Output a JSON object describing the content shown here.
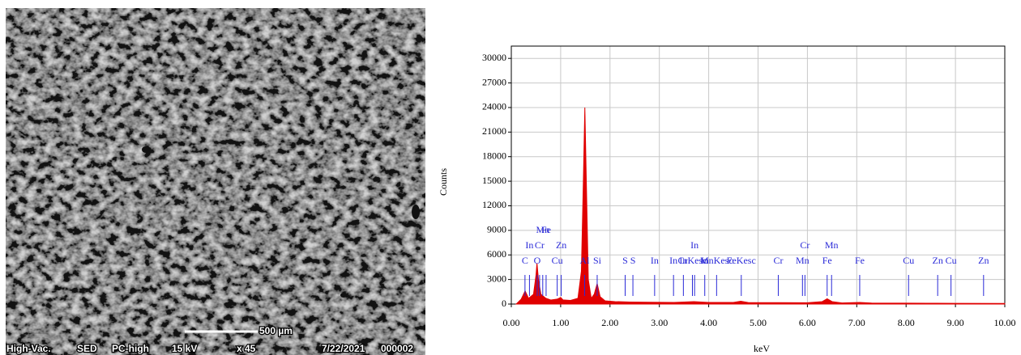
{
  "sem_image": {
    "scale_bar": "500 µm",
    "info_bar": [
      "High-Vac.",
      "SED",
      "PC-high",
      "15 kV",
      "x 45",
      "7/22/2021",
      "000002"
    ]
  },
  "chart_data": {
    "type": "area",
    "x_label": "keV",
    "y_label": "Counts",
    "xlim": [
      0,
      10
    ],
    "ylim": [
      0,
      31500
    ],
    "xticks": [
      {
        "value": 0,
        "label": "0.00"
      },
      {
        "value": 1,
        "label": "1.00"
      },
      {
        "value": 2,
        "label": "2.00"
      },
      {
        "value": 3,
        "label": "3.00"
      },
      {
        "value": 4,
        "label": "4.00"
      },
      {
        "value": 5,
        "label": "5.00"
      },
      {
        "value": 6,
        "label": "6.00"
      },
      {
        "value": 7,
        "label": "7.00"
      },
      {
        "value": 8,
        "label": "8.00"
      },
      {
        "value": 9,
        "label": "9.00"
      },
      {
        "value": 10,
        "label": "10.00"
      }
    ],
    "yticks": [
      0,
      3000,
      6000,
      9000,
      12000,
      15000,
      18000,
      21000,
      24000,
      27000,
      30000
    ],
    "grid": true,
    "x": [
      0.1,
      0.2,
      0.28,
      0.35,
      0.45,
      0.5,
      0.52,
      0.55,
      0.6,
      0.7,
      0.8,
      0.93,
      1.0,
      1.05,
      1.2,
      1.35,
      1.42,
      1.46,
      1.49,
      1.52,
      1.56,
      1.62,
      1.68,
      1.74,
      1.8,
      1.9,
      2.1,
      2.4,
      2.8,
      3.3,
      3.7,
      4.0,
      4.5,
      4.65,
      4.8,
      5.4,
      6.0,
      6.3,
      6.4,
      6.5,
      6.7,
      7.06,
      7.3,
      8.0,
      8.6,
      9.0,
      10.0
    ],
    "series": [
      {
        "color": "#e00000",
        "values": [
          0,
          600,
          1600,
          700,
          1200,
          3500,
          5000,
          3000,
          1200,
          700,
          500,
          600,
          800,
          500,
          450,
          700,
          4000,
          15000,
          24000,
          15000,
          3000,
          700,
          1200,
          2500,
          900,
          400,
          300,
          250,
          220,
          200,
          300,
          200,
          200,
          350,
          180,
          170,
          160,
          300,
          650,
          300,
          140,
          200,
          120,
          110,
          100,
          90,
          80
        ]
      }
    ],
    "annotation_color": "#2a2ad8",
    "annotations": [
      {
        "label": "C",
        "x": 0.277
      },
      {
        "label": "In",
        "x": 0.368
      },
      {
        "label": "O",
        "x": 0.525
      },
      {
        "label": "Cr",
        "x": 0.573
      },
      {
        "label": "Mn",
        "x": 0.637
      },
      {
        "label": "Fe",
        "x": 0.705
      },
      {
        "label": "Cu",
        "x": 0.93
      },
      {
        "label": "Zn",
        "x": 1.012
      },
      {
        "label": "Al",
        "x": 1.486
      },
      {
        "label": "Si",
        "x": 1.74
      },
      {
        "label": "S",
        "x": 2.307
      },
      {
        "label": "S",
        "x": 2.464
      },
      {
        "label": "In",
        "x": 2.904
      },
      {
        "label": "In",
        "x": 3.287
      },
      {
        "label": "In",
        "x": 3.487
      },
      {
        "label": "CrKesc",
        "x": 3.67
      },
      {
        "label": "In",
        "x": 3.714
      },
      {
        "label": "In",
        "x": 3.92
      },
      {
        "label": "MnKesc",
        "x": 4.16
      },
      {
        "label": "FeKesc",
        "x": 4.66
      },
      {
        "label": "Cr",
        "x": 5.41
      },
      {
        "label": "Mn",
        "x": 5.9
      },
      {
        "label": "Cr",
        "x": 5.95
      },
      {
        "label": "Fe",
        "x": 6.4
      },
      {
        "label": "Mn",
        "x": 6.49
      },
      {
        "label": "Fe",
        "x": 7.06
      },
      {
        "label": "Cu",
        "x": 8.05
      },
      {
        "label": "Zn",
        "x": 8.64
      },
      {
        "label": "Cu",
        "x": 8.91
      },
      {
        "label": "Zn",
        "x": 9.57
      }
    ]
  }
}
